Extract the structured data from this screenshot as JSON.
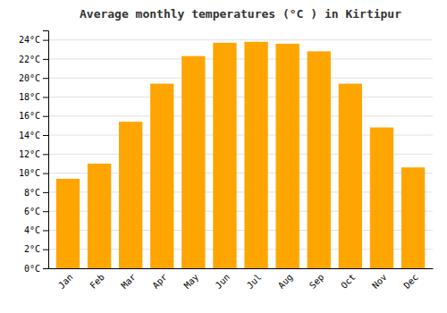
{
  "chart_data": {
    "type": "bar",
    "title": "Average monthly temperatures (°C ) in Kirtipur",
    "categories": [
      "Jan",
      "Feb",
      "Mar",
      "Apr",
      "May",
      "Jun",
      "Jul",
      "Aug",
      "Sep",
      "Oct",
      "Nov",
      "Dec"
    ],
    "values": [
      9.4,
      11.0,
      15.4,
      19.4,
      22.3,
      23.7,
      23.8,
      23.6,
      22.8,
      19.4,
      14.8,
      10.6
    ],
    "color": "#FFA500",
    "ylim": [
      0,
      25
    ],
    "yticks": [
      {
        "value": 0,
        "label": "0°C"
      },
      {
        "value": 2,
        "label": "2°C"
      },
      {
        "value": 4,
        "label": "4°C"
      },
      {
        "value": 6,
        "label": "6°C"
      },
      {
        "value": 8,
        "label": "8°C"
      },
      {
        "value": 10,
        "label": "10°C"
      },
      {
        "value": 12,
        "label": "12°C"
      },
      {
        "value": 14,
        "label": "14°C"
      },
      {
        "value": 16,
        "label": "16°C"
      },
      {
        "value": 18,
        "label": "18°C"
      },
      {
        "value": 20,
        "label": "20°C"
      },
      {
        "value": 22,
        "label": "22°C"
      },
      {
        "value": 24,
        "label": "24°C"
      }
    ],
    "grid": true
  }
}
